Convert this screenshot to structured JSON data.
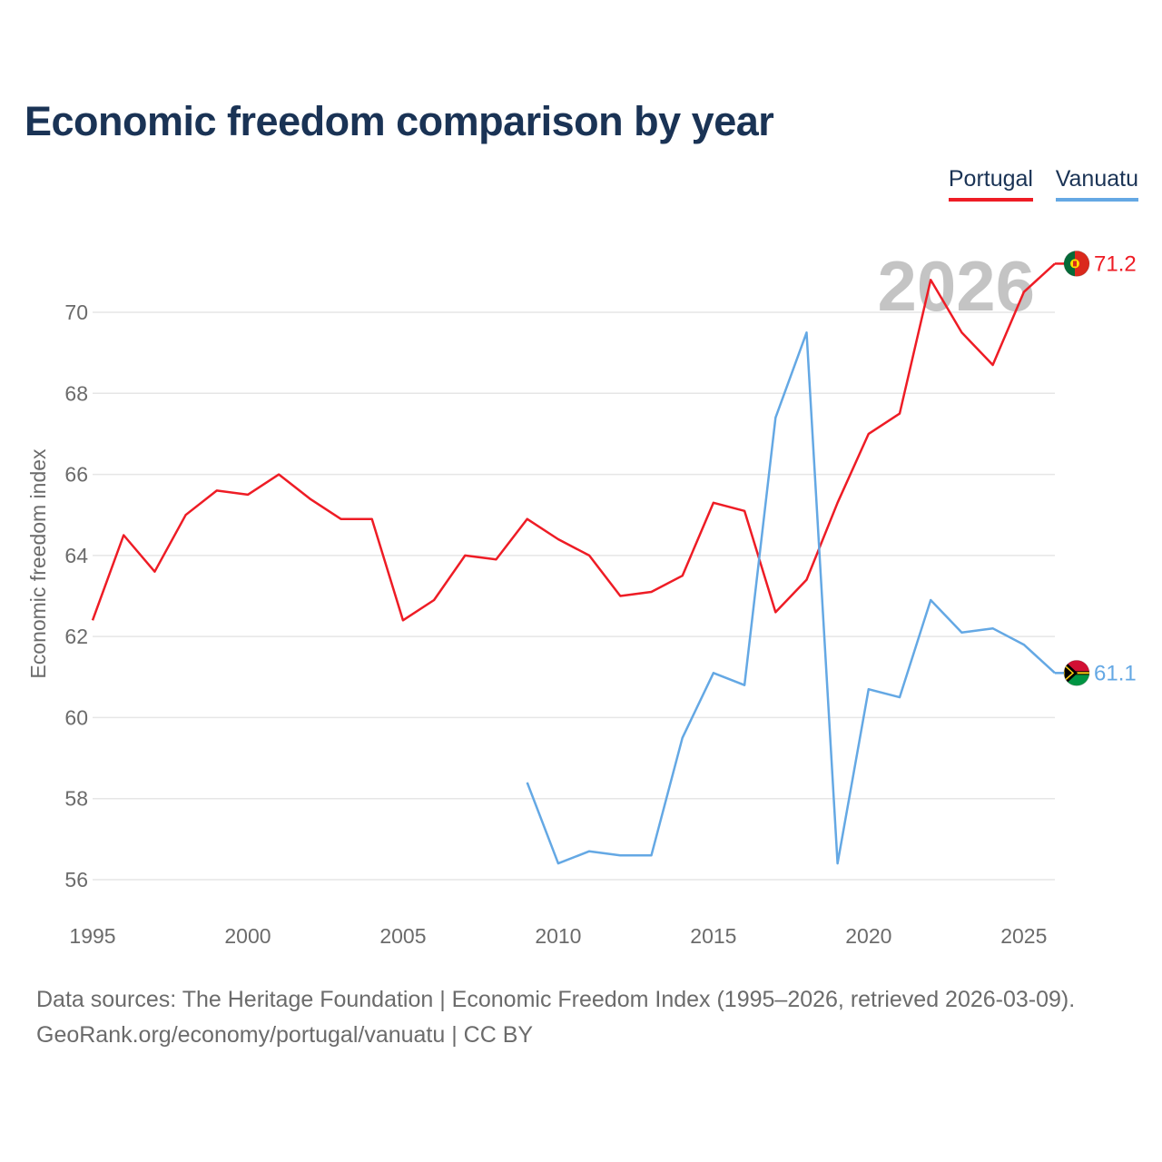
{
  "title": "Economic freedom comparison by year",
  "legend": [
    {
      "name": "Portugal",
      "color": "#ee1c25"
    },
    {
      "name": "Vanuatu",
      "color": "#64a8e4"
    }
  ],
  "footer": {
    "line1": "Data sources: The Heritage Foundation | Economic Freedom Index (1995–2026, retrieved 2026-03-09).",
    "line2": "GeoRank.org/economy/portugal/vanuatu | CC BY"
  },
  "chart_data": {
    "type": "line",
    "title": "Economic freedom comparison by year",
    "xlabel": "",
    "ylabel": "Economic freedom index",
    "watermark_year": "2026",
    "xlim": [
      1995,
      2026
    ],
    "ylim": [
      55,
      72.5
    ],
    "x_ticks": [
      1995,
      2000,
      2005,
      2010,
      2015,
      2020,
      2025
    ],
    "y_ticks": [
      56,
      58,
      60,
      62,
      64,
      66,
      68,
      70
    ],
    "grid": true,
    "legend_position": "top-right",
    "series": [
      {
        "name": "Portugal",
        "color": "#ee1c25",
        "end_label": "71.2",
        "flag": "portugal-flag",
        "x": [
          1995,
          1996,
          1997,
          1998,
          1999,
          2000,
          2001,
          2002,
          2003,
          2004,
          2005,
          2006,
          2007,
          2008,
          2009,
          2010,
          2011,
          2012,
          2013,
          2014,
          2015,
          2016,
          2017,
          2018,
          2019,
          2020,
          2021,
          2022,
          2023,
          2024,
          2025,
          2026
        ],
        "values": [
          62.4,
          64.5,
          63.6,
          65.0,
          65.6,
          65.5,
          66.0,
          65.4,
          64.9,
          64.9,
          62.4,
          62.9,
          64.0,
          63.9,
          64.9,
          64.4,
          64.0,
          63.0,
          63.1,
          63.5,
          65.3,
          65.1,
          62.6,
          63.4,
          65.3,
          67.0,
          67.5,
          70.8,
          69.5,
          68.7,
          70.5,
          71.2
        ]
      },
      {
        "name": "Vanuatu",
        "color": "#64a8e4",
        "end_label": "61.1",
        "flag": "vanuatu-flag",
        "x": [
          2009,
          2010,
          2011,
          2012,
          2013,
          2014,
          2015,
          2016,
          2017,
          2018,
          2019,
          2020,
          2021,
          2022,
          2023,
          2024,
          2025,
          2026
        ],
        "values": [
          58.4,
          56.4,
          56.7,
          56.6,
          56.6,
          59.5,
          61.1,
          60.8,
          67.4,
          69.5,
          56.4,
          60.7,
          60.5,
          62.9,
          62.1,
          62.2,
          61.8,
          61.1
        ]
      }
    ]
  }
}
